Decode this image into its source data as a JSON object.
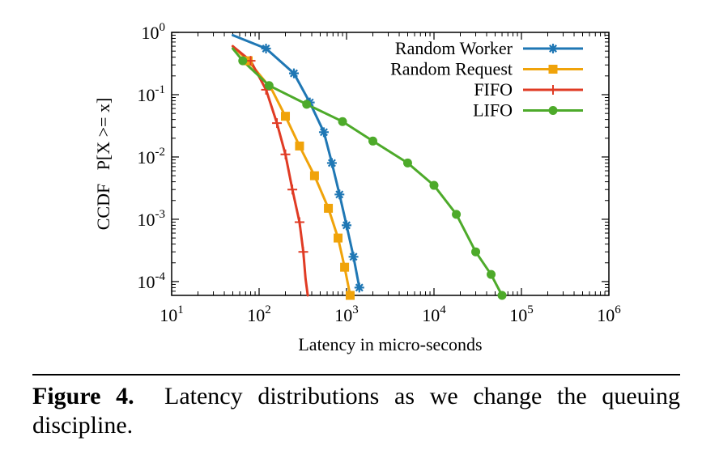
{
  "chart_data": {
    "type": "line",
    "title": "",
    "xlabel": "Latency in micro-seconds",
    "ylabel": "CCDF   P[X >= x]",
    "xscale": "log",
    "yscale": "log",
    "xlim": [
      10,
      1000000
    ],
    "ylim": [
      6e-05,
      1
    ],
    "x_ticks": [
      {
        "base": "10",
        "exp": "1"
      },
      {
        "base": "10",
        "exp": "2"
      },
      {
        "base": "10",
        "exp": "3"
      },
      {
        "base": "10",
        "exp": "4"
      },
      {
        "base": "10",
        "exp": "5"
      },
      {
        "base": "10",
        "exp": "6"
      }
    ],
    "y_ticks": [
      {
        "base": "10",
        "exp": "0"
      },
      {
        "base": "10",
        "exp": "-1"
      },
      {
        "base": "10",
        "exp": "-2"
      },
      {
        "base": "10",
        "exp": "-3"
      },
      {
        "base": "10",
        "exp": "-4"
      }
    ],
    "legend_position": "top-right",
    "grid": false,
    "series": [
      {
        "name": "Random Worker",
        "color": "#1f77b4",
        "marker": "asterisk",
        "points": [
          [
            50,
            0.9
          ],
          [
            120,
            0.55
          ],
          [
            250,
            0.22
          ],
          [
            380,
            0.075
          ],
          [
            550,
            0.025
          ],
          [
            680,
            0.008
          ],
          [
            830,
            0.0025
          ],
          [
            1000,
            0.0008
          ],
          [
            1200,
            0.00025
          ],
          [
            1400,
            8e-05
          ]
        ],
        "markers": [
          [
            120,
            0.55
          ],
          [
            250,
            0.22
          ],
          [
            380,
            0.075
          ],
          [
            550,
            0.025
          ],
          [
            680,
            0.008
          ],
          [
            830,
            0.0025
          ],
          [
            1000,
            0.0008
          ],
          [
            1200,
            0.00025
          ],
          [
            1400,
            8e-05
          ]
        ]
      },
      {
        "name": "Random Request",
        "color": "#f0a30a",
        "marker": "square",
        "points": [
          [
            50,
            0.6
          ],
          [
            75,
            0.35
          ],
          [
            140,
            0.12
          ],
          [
            200,
            0.045
          ],
          [
            290,
            0.015
          ],
          [
            430,
            0.005
          ],
          [
            620,
            0.0015
          ],
          [
            800,
            0.0005
          ],
          [
            950,
            0.00017
          ],
          [
            1100,
            6e-05
          ]
        ],
        "markers": [
          [
            75,
            0.35
          ],
          [
            200,
            0.045
          ],
          [
            290,
            0.015
          ],
          [
            430,
            0.005
          ],
          [
            620,
            0.0015
          ],
          [
            800,
            0.0005
          ],
          [
            950,
            0.00017
          ],
          [
            1100,
            6e-05
          ]
        ]
      },
      {
        "name": "FIFO",
        "color": "#e03b24",
        "marker": "plus",
        "points": [
          [
            50,
            0.6
          ],
          [
            80,
            0.35
          ],
          [
            120,
            0.12
          ],
          [
            160,
            0.035
          ],
          [
            200,
            0.011
          ],
          [
            240,
            0.003
          ],
          [
            290,
            0.0009
          ],
          [
            320,
            0.0003
          ],
          [
            340,
            0.00011
          ],
          [
            360,
            6e-05
          ]
        ],
        "markers": [
          [
            80,
            0.35
          ],
          [
            120,
            0.12
          ],
          [
            160,
            0.035
          ],
          [
            200,
            0.011
          ],
          [
            240,
            0.003
          ],
          [
            290,
            0.0009
          ],
          [
            320,
            0.0003
          ]
        ]
      },
      {
        "name": "LIFO",
        "color": "#4daa2a",
        "marker": "circle",
        "points": [
          [
            50,
            0.55
          ],
          [
            65,
            0.35
          ],
          [
            130,
            0.14
          ],
          [
            350,
            0.07
          ],
          [
            900,
            0.037
          ],
          [
            2000,
            0.018
          ],
          [
            5000,
            0.008
          ],
          [
            10000,
            0.0035
          ],
          [
            18000,
            0.0012
          ],
          [
            30000,
            0.0003
          ],
          [
            45000,
            0.00013
          ],
          [
            60000,
            6e-05
          ]
        ],
        "markers": [
          [
            65,
            0.35
          ],
          [
            130,
            0.14
          ],
          [
            350,
            0.07
          ],
          [
            900,
            0.037
          ],
          [
            2000,
            0.018
          ],
          [
            5000,
            0.008
          ],
          [
            10000,
            0.0035
          ],
          [
            18000,
            0.0012
          ],
          [
            30000,
            0.0003
          ],
          [
            45000,
            0.00013
          ],
          [
            60000,
            6e-05
          ]
        ]
      }
    ]
  },
  "caption": {
    "label": "Figure 4.",
    "text": "Latency distributions as we change the queuing discipline."
  }
}
